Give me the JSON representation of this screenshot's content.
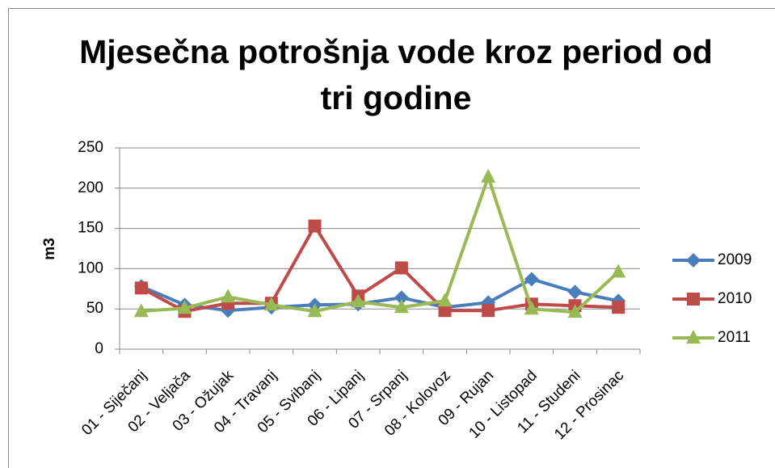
{
  "chart_data": {
    "type": "line",
    "title": "Mjesečna potrošnja vode kroz period od tri godine",
    "y_label": "m3",
    "categories": [
      "01 - Siječanj",
      "02 - Veljača",
      "03 - Ožujak",
      "04 - Travanj",
      "05 - Svibanj",
      "06 - Lipanj",
      "07 - Srpanj",
      "08 - Kolovoz",
      "09 - Rujan",
      "10 - Listopad",
      "11 - Studeni",
      "12 - Prosinac"
    ],
    "series": [
      {
        "name": "2009",
        "color": "#4a7ebb",
        "marker": "diamond",
        "values": [
          78,
          55,
          48,
          52,
          55,
          56,
          64,
          52,
          58,
          87,
          71,
          60
        ]
      },
      {
        "name": "2010",
        "color": "#be4b48",
        "marker": "square",
        "values": [
          76,
          47,
          57,
          57,
          153,
          66,
          101,
          48,
          48,
          56,
          54,
          52
        ]
      },
      {
        "name": "2011",
        "color": "#98b954",
        "marker": "triangle",
        "values": [
          47,
          51,
          65,
          55,
          47,
          59,
          52,
          60,
          214,
          50,
          46,
          96
        ]
      }
    ],
    "ylim": [
      0,
      250
    ],
    "yticks": [
      0,
      50,
      100,
      150,
      200,
      250
    ],
    "grid": true,
    "legend": "right"
  }
}
